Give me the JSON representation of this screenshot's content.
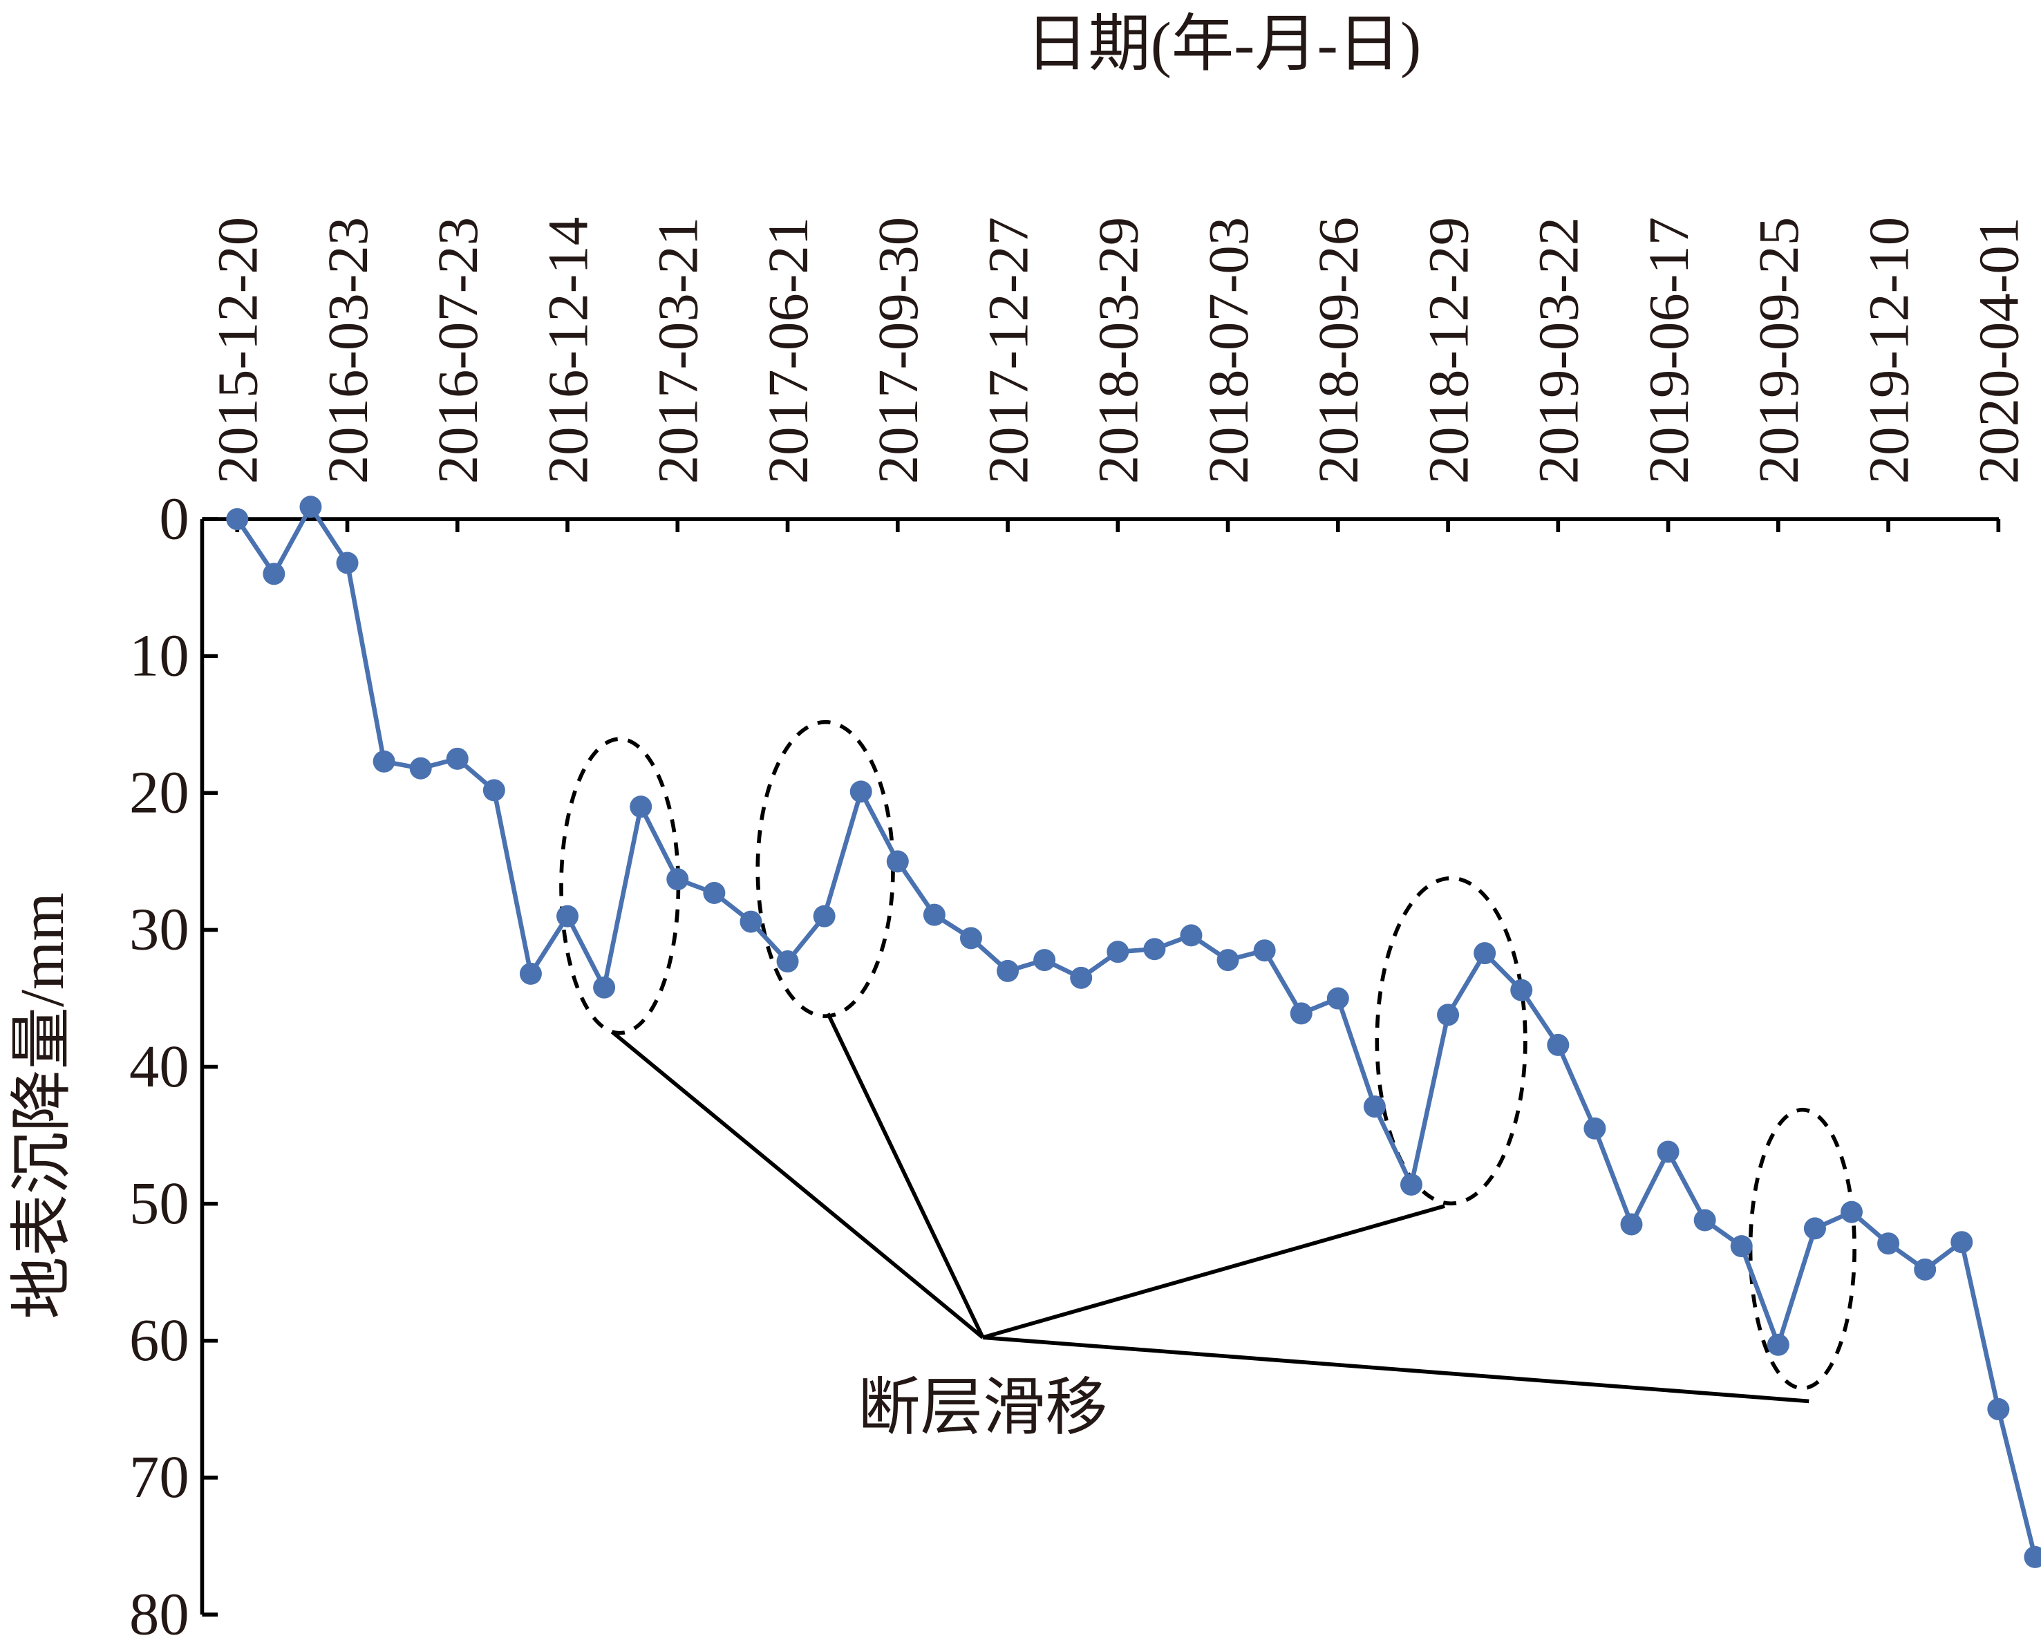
{
  "chart_data": {
    "type": "line",
    "x_label": "日期(年-月-日)",
    "y_label": "地表沉降量/mm",
    "annotation": "断层滑移",
    "categories": [
      "2015-12-20",
      null,
      null,
      "2016-03-23",
      null,
      null,
      "2016-07-23",
      null,
      null,
      "2016-12-14",
      null,
      null,
      "2017-03-21",
      null,
      null,
      "2017-06-21",
      null,
      null,
      "2017-09-30",
      null,
      null,
      "2017-12-27",
      null,
      null,
      "2018-03-29",
      null,
      null,
      "2018-07-03",
      null,
      null,
      "2018-09-26",
      null,
      null,
      "2018-12-29",
      null,
      null,
      "2019-03-22",
      null,
      null,
      "2019-06-17",
      null,
      null,
      "2019-09-25",
      null,
      null,
      "2019-12-10",
      null,
      null,
      "2020-04-01",
      null
    ],
    "values": [
      0,
      4.0,
      -0.9,
      3.2,
      17.7,
      18.2,
      17.5,
      19.8,
      33.2,
      29.0,
      34.2,
      21.0,
      26.3,
      27.3,
      29.4,
      32.3,
      29.0,
      19.9,
      25.0,
      28.9,
      30.6,
      33.0,
      32.2,
      33.5,
      31.6,
      31.4,
      30.4,
      32.2,
      31.5,
      36.1,
      35.0,
      42.9,
      48.6,
      36.2,
      31.7,
      34.4,
      38.4,
      44.5,
      51.5,
      46.2,
      51.2,
      53.1,
      60.3,
      51.8,
      50.6,
      52.9,
      54.8,
      52.8,
      65.0,
      75.8
    ],
    "color": "#4a72b0",
    "ylim": [
      0,
      80
    ],
    "yticks": [
      0,
      10,
      20,
      30,
      40,
      50,
      60,
      70,
      80
    ],
    "y_inverted": true,
    "x_axis_position": "top"
  }
}
